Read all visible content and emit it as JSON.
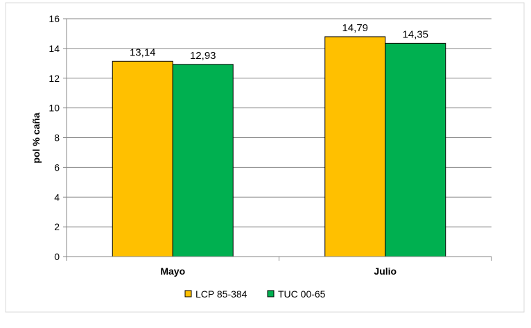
{
  "chart_data": {
    "type": "bar",
    "categories": [
      "Mayo",
      "Julio"
    ],
    "series": [
      {
        "name": "LCP 85-384",
        "values": [
          13.14,
          12.93
        ],
        "labels": [
          "13,14",
          "12,93"
        ],
        "color": "#FFC000"
      },
      {
        "name": "TUC 00-65",
        "values": [
          14.79,
          14.35
        ],
        "labels": [
          "14,79",
          "14,35"
        ],
        "color": "#00B050"
      }
    ],
    "ylabel": "pol % caña",
    "xlabel": "",
    "title": "",
    "ylim": [
      0,
      16
    ],
    "yticks": [
      0,
      2,
      4,
      6,
      8,
      10,
      12,
      14,
      16
    ],
    "grid": true,
    "legend_position": "bottom"
  }
}
